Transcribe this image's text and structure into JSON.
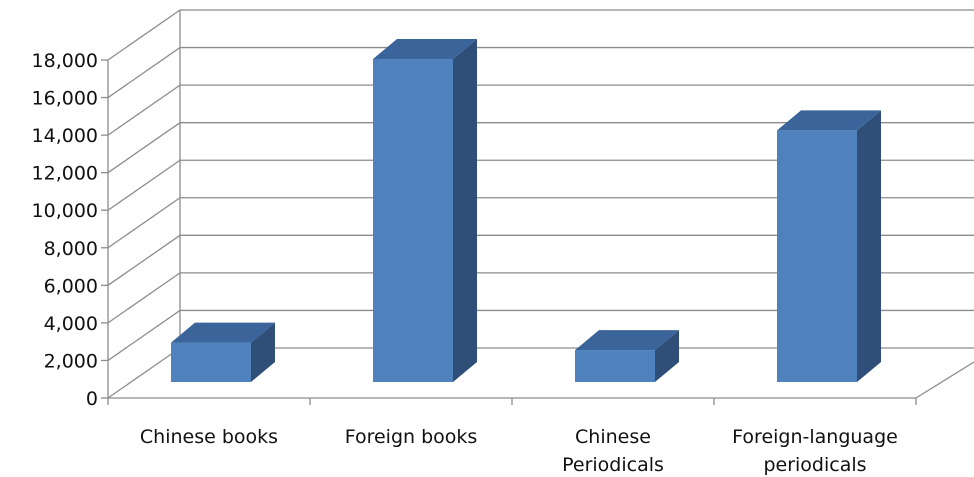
{
  "chart_data": {
    "type": "bar",
    "style": "3d-column",
    "categories": [
      "Chinese books",
      "Foreign books",
      "Chinese\nPeriodicals",
      "Foreign-language\nperiodicals"
    ],
    "values": [
      2100,
      17200,
      1700,
      13400
    ],
    "ylim": [
      0,
      18000
    ],
    "yticks": [
      0,
      2000,
      4000,
      6000,
      8000,
      10000,
      12000,
      14000,
      16000,
      18000
    ],
    "ytick_labels": [
      "0",
      "2,000",
      "4,000",
      "6,000",
      "8,000",
      "10,000",
      "12,000",
      "14,000",
      "16,000",
      "18,000"
    ],
    "grid": true,
    "legend": "none",
    "colors": {
      "bar_front": "#4f81bd",
      "bar_side": "#2f4f79",
      "bar_top": "#3b649a",
      "grid": "#8c8c8c"
    }
  }
}
